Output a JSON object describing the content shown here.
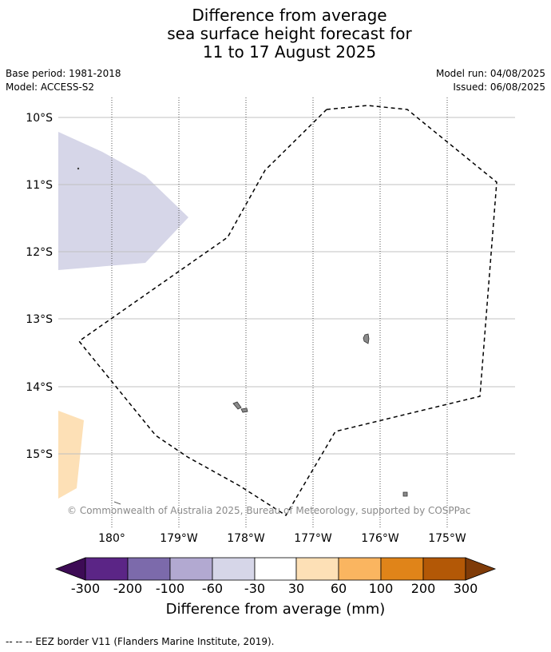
{
  "title_lines": [
    "Difference from average",
    "sea surface height forecast for",
    "11 to 17 August 2025"
  ],
  "meta_left": [
    "Base period: 1981-2018",
    "Model: ACCESS-S2"
  ],
  "meta_right": [
    "Model run: 04/08/2025",
    "Issued: 06/08/2025"
  ],
  "map": {
    "lat_labels": [
      "10°S",
      "11°S",
      "12°S",
      "13°S",
      "14°S",
      "15°S"
    ],
    "lon_labels": [
      "180°",
      "179°W",
      "178°W",
      "177°W",
      "176°W",
      "175°W"
    ],
    "credit": "© Commonwealth of Australia 2025, Bureau of Meteorology, supported by COSPPac",
    "region_colors": {
      "negative_band": "#d6d6e8",
      "positive_band": "#fde0b6"
    }
  },
  "colorbar": {
    "label": "Difference from average (mm)",
    "ticks": [
      "-300",
      "-200",
      "-100",
      "-60",
      "-30",
      "30",
      "60",
      "100",
      "200",
      "300"
    ],
    "colors": [
      "#3d0b55",
      "#5b2586",
      "#7c6aab",
      "#b2a9d1",
      "#d6d6e8",
      "#ffffff",
      "#fde0b6",
      "#fab560",
      "#e08419",
      "#b35806",
      "#7f3b08"
    ]
  },
  "footer": "--  --  -- EEZ border V11 (Flanders Marine Institute, 2019)."
}
